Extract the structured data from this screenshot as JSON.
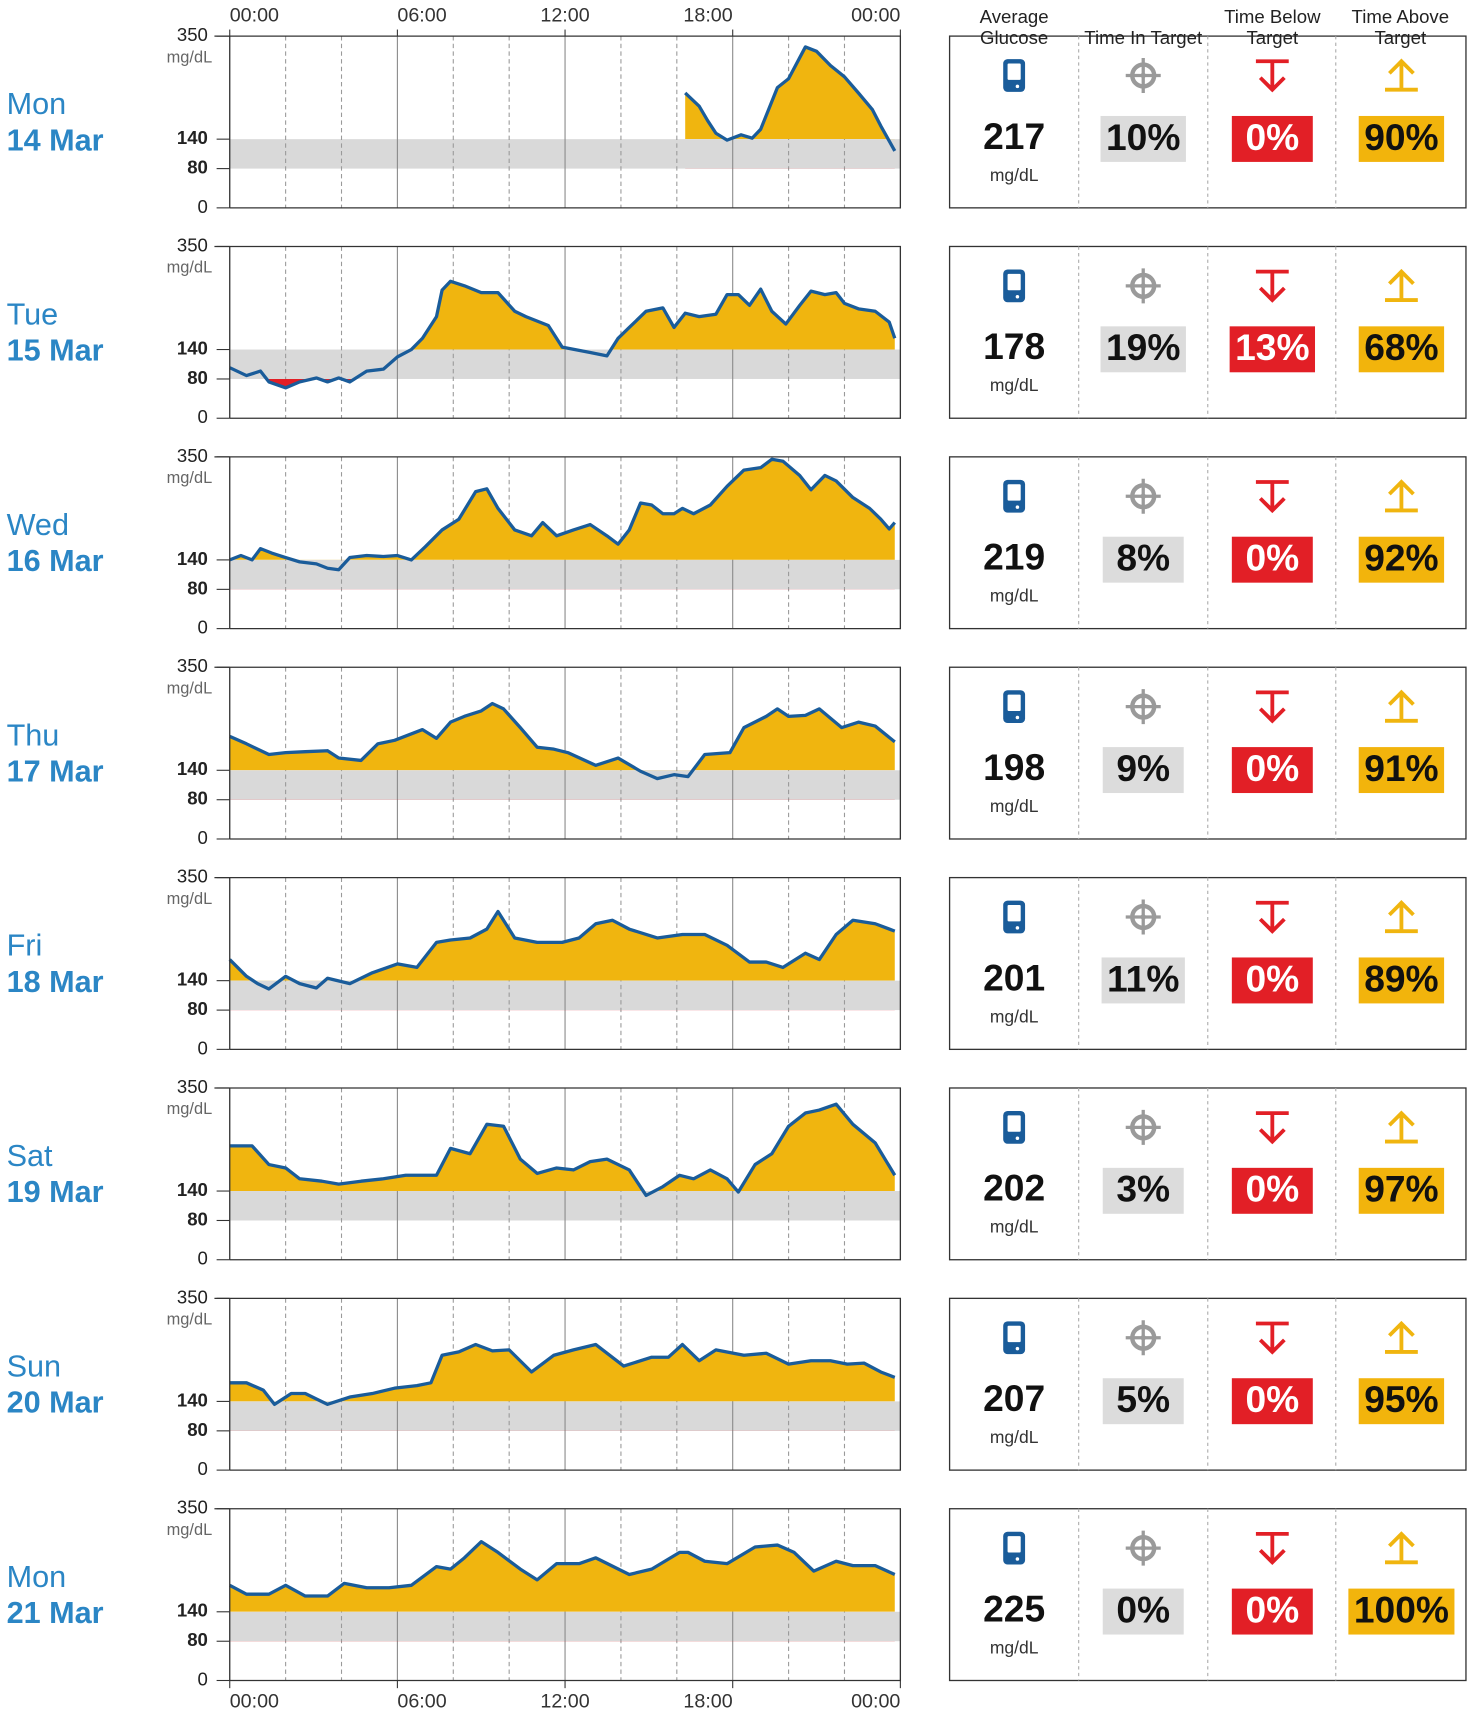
{
  "stats_headers": [
    "Average Glucose",
    "Time In Target",
    "Time Below Target",
    "Time Above Target"
  ],
  "stats_box_colors": [
    "#dcdcdc",
    "#e21f26",
    "#f2b40c"
  ],
  "chart_data": [
    {
      "type": "area",
      "day": "Mon",
      "date": "14 Mar",
      "x": [
        16.3,
        16.8,
        17.1,
        17.4,
        17.8,
        18.3,
        18.7,
        19.0,
        19.6,
        20.0,
        20.6,
        21.0,
        21.5,
        22.0,
        22.5,
        23.0,
        23.3,
        23.8
      ],
      "values": [
        234,
        207,
        178,
        152,
        138,
        149,
        142,
        160,
        245,
        263,
        328,
        319,
        290,
        267,
        234,
        200,
        167,
        116
      ],
      "xlim": [
        0,
        24
      ],
      "xticks": [
        {
          "value": 0,
          "label": "00:00"
        },
        {
          "value": 6,
          "label": "06:00"
        },
        {
          "value": 12,
          "label": "12:00"
        },
        {
          "value": 18,
          "label": "18:00"
        },
        {
          "value": 24,
          "label": "00:00"
        }
      ],
      "xgrid": [
        2,
        4,
        8,
        10,
        14,
        16,
        20,
        22
      ],
      "ylim": [
        0,
        350
      ],
      "yticks": [
        0,
        80,
        140,
        350
      ],
      "y_unit": "mg/dL",
      "target_range": [
        80,
        140
      ],
      "color": "#1a5c9a",
      "above_color": "#f0b50f",
      "below_color": "#e21f26",
      "target_color": "#d9d9d9",
      "stats": {
        "values": [
          217,
          10,
          0,
          90
        ],
        "value_labels": [
          "217",
          "10%",
          "0%",
          "90%"
        ],
        "unit": "mg/dL"
      }
    },
    {
      "type": "area",
      "day": "Tue",
      "date": "15 Mar",
      "x": [
        0,
        0.6,
        1.1,
        1.4,
        2.0,
        2.5,
        3.1,
        3.5,
        3.9,
        4.3,
        4.9,
        5.5,
        6.0,
        6.5,
        6.9,
        7.4,
        7.6,
        7.9,
        8.4,
        9.0,
        9.6,
        10.2,
        10.6,
        11.4,
        11.9,
        12.9,
        13.5,
        13.9,
        14.3,
        14.9,
        15.5,
        15.9,
        16.3,
        16.8,
        17.4,
        17.8,
        18.2,
        18.6,
        19.0,
        19.4,
        19.9,
        20.4,
        20.8,
        21.3,
        21.7,
        22.0,
        22.5,
        23.1,
        23.6,
        23.8
      ],
      "values": [
        103,
        87,
        96,
        74,
        62,
        74,
        82,
        74,
        82,
        74,
        96,
        100,
        125,
        140,
        163,
        207,
        261,
        279,
        270,
        256,
        256,
        218,
        207,
        189,
        145,
        134,
        127,
        163,
        185,
        218,
        225,
        185,
        214,
        207,
        212,
        252,
        252,
        230,
        263,
        218,
        192,
        230,
        259,
        252,
        256,
        234,
        223,
        218,
        196,
        163
      ],
      "xlim": [
        0,
        24
      ],
      "xticks": [
        {
          "value": 0,
          "label": "00:00"
        },
        {
          "value": 6,
          "label": "06:00"
        },
        {
          "value": 12,
          "label": "12:00"
        },
        {
          "value": 18,
          "label": "18:00"
        },
        {
          "value": 24,
          "label": "00:00"
        }
      ],
      "xgrid": [
        2,
        4,
        8,
        10,
        14,
        16,
        20,
        22
      ],
      "ylim": [
        0,
        350
      ],
      "yticks": [
        0,
        80,
        140,
        350
      ],
      "y_unit": "mg/dL",
      "target_range": [
        80,
        140
      ],
      "color": "#1a5c9a",
      "above_color": "#f0b50f",
      "below_color": "#e21f26",
      "target_color": "#d9d9d9",
      "stats": {
        "values": [
          178,
          19,
          13,
          68
        ],
        "value_labels": [
          "178",
          "19%",
          "13%",
          "68%"
        ],
        "unit": "mg/dL"
      }
    },
    {
      "type": "area",
      "day": "Wed",
      "date": "16 Mar",
      "x": [
        0,
        0.4,
        0.8,
        1.1,
        1.5,
        2.0,
        2.5,
        3.1,
        3.5,
        3.9,
        4.3,
        4.9,
        5.5,
        6.0,
        6.5,
        7.0,
        7.6,
        8.2,
        8.8,
        9.2,
        9.6,
        10.2,
        10.8,
        11.2,
        11.7,
        12.3,
        12.9,
        13.5,
        13.9,
        14.3,
        14.7,
        15.1,
        15.5,
        15.9,
        16.2,
        16.6,
        17.2,
        17.8,
        18.4,
        19.0,
        19.4,
        19.8,
        20.4,
        20.8,
        21.3,
        21.7,
        22.3,
        22.9,
        23.3,
        23.6,
        23.8
      ],
      "values": [
        140,
        149,
        140,
        163,
        154,
        145,
        136,
        132,
        123,
        120,
        145,
        149,
        147,
        149,
        140,
        167,
        201,
        223,
        279,
        285,
        245,
        201,
        189,
        216,
        189,
        201,
        212,
        189,
        172,
        201,
        256,
        252,
        234,
        234,
        245,
        234,
        252,
        290,
        323,
        328,
        345,
        341,
        312,
        283,
        312,
        301,
        267,
        245,
        223,
        203,
        216
      ],
      "xlim": [
        0,
        24
      ],
      "xticks": [
        {
          "value": 0,
          "label": "00:00"
        },
        {
          "value": 6,
          "label": "06:00"
        },
        {
          "value": 12,
          "label": "12:00"
        },
        {
          "value": 18,
          "label": "18:00"
        },
        {
          "value": 24,
          "label": "00:00"
        }
      ],
      "xgrid": [
        2,
        4,
        8,
        10,
        14,
        16,
        20,
        22
      ],
      "ylim": [
        0,
        350
      ],
      "yticks": [
        0,
        80,
        140,
        350
      ],
      "y_unit": "mg/dL",
      "target_range": [
        80,
        140
      ],
      "color": "#1a5c9a",
      "above_color": "#f0b50f",
      "below_color": "#e21f26",
      "target_color": "#d9d9d9",
      "stats": {
        "values": [
          219,
          8,
          0,
          92
        ],
        "value_labels": [
          "219",
          "8%",
          "0%",
          "92%"
        ],
        "unit": "mg/dL"
      }
    },
    {
      "type": "area",
      "day": "Thu",
      "date": "17 Mar",
      "x": [
        0,
        0.6,
        1.4,
        2.0,
        2.7,
        3.5,
        3.9,
        4.7,
        5.3,
        5.9,
        6.9,
        7.4,
        7.9,
        8.4,
        9.0,
        9.4,
        9.8,
        10.4,
        11.0,
        11.6,
        12.1,
        13.1,
        13.9,
        14.7,
        15.3,
        15.9,
        16.4,
        17.0,
        17.9,
        18.4,
        19.2,
        19.6,
        20.0,
        20.6,
        21.1,
        21.9,
        22.5,
        23.1,
        23.8
      ],
      "values": [
        209,
        194,
        172,
        176,
        178,
        180,
        165,
        160,
        194,
        201,
        223,
        205,
        238,
        250,
        261,
        276,
        265,
        227,
        187,
        183,
        176,
        150,
        165,
        138,
        123,
        131,
        127,
        172,
        176,
        227,
        250,
        265,
        250,
        252,
        265,
        227,
        238,
        230,
        198
      ],
      "xlim": [
        0,
        24
      ],
      "xticks": [
        {
          "value": 0,
          "label": "00:00"
        },
        {
          "value": 6,
          "label": "06:00"
        },
        {
          "value": 12,
          "label": "12:00"
        },
        {
          "value": 18,
          "label": "18:00"
        },
        {
          "value": 24,
          "label": "00:00"
        }
      ],
      "xgrid": [
        2,
        4,
        8,
        10,
        14,
        16,
        20,
        22
      ],
      "ylim": [
        0,
        350
      ],
      "yticks": [
        0,
        80,
        140,
        350
      ],
      "y_unit": "mg/dL",
      "target_range": [
        80,
        140
      ],
      "color": "#1a5c9a",
      "above_color": "#f0b50f",
      "below_color": "#e21f26",
      "target_color": "#d9d9d9",
      "stats": {
        "values": [
          198,
          9,
          0,
          91
        ],
        "value_labels": [
          "198",
          "9%",
          "0%",
          "91%"
        ],
        "unit": "mg/dL"
      }
    },
    {
      "type": "area",
      "day": "Fri",
      "date": "18 Mar",
      "x": [
        0,
        0.6,
        1.0,
        1.4,
        2.0,
        2.5,
        3.1,
        3.5,
        4.3,
        5.1,
        6.0,
        6.7,
        7.4,
        7.9,
        8.6,
        9.2,
        9.6,
        10.2,
        11.0,
        11.9,
        12.5,
        13.1,
        13.7,
        14.3,
        15.3,
        16.2,
        17.0,
        17.8,
        18.6,
        19.2,
        19.8,
        20.6,
        21.1,
        21.7,
        22.3,
        23.1,
        23.8
      ],
      "values": [
        183,
        149,
        134,
        123,
        149,
        134,
        125,
        145,
        134,
        156,
        174,
        167,
        218,
        223,
        227,
        245,
        281,
        227,
        218,
        218,
        227,
        256,
        263,
        245,
        227,
        234,
        234,
        212,
        178,
        178,
        167,
        196,
        183,
        234,
        263,
        256,
        241
      ],
      "xlim": [
        0,
        24
      ],
      "xticks": [
        {
          "value": 0,
          "label": "00:00"
        },
        {
          "value": 6,
          "label": "06:00"
        },
        {
          "value": 12,
          "label": "12:00"
        },
        {
          "value": 18,
          "label": "18:00"
        },
        {
          "value": 24,
          "label": "00:00"
        }
      ],
      "xgrid": [
        2,
        4,
        8,
        10,
        14,
        16,
        20,
        22
      ],
      "ylim": [
        0,
        350
      ],
      "yticks": [
        0,
        80,
        140,
        350
      ],
      "y_unit": "mg/dL",
      "target_range": [
        80,
        140
      ],
      "color": "#1a5c9a",
      "above_color": "#f0b50f",
      "below_color": "#e21f26",
      "target_color": "#d9d9d9",
      "stats": {
        "values": [
          201,
          11,
          0,
          89
        ],
        "value_labels": [
          "201",
          "11%",
          "0%",
          "89%"
        ],
        "unit": "mg/dL"
      }
    },
    {
      "type": "area",
      "day": "Sat",
      "date": "19 Mar",
      "x": [
        0,
        0.8,
        1.4,
        2.0,
        2.5,
        3.3,
        3.9,
        4.7,
        5.5,
        6.3,
        7.0,
        7.4,
        7.9,
        8.6,
        9.2,
        9.8,
        10.4,
        11.0,
        11.7,
        12.3,
        12.9,
        13.5,
        14.3,
        14.9,
        15.5,
        16.1,
        16.6,
        17.2,
        17.8,
        18.2,
        18.8,
        19.4,
        20.0,
        20.6,
        21.1,
        21.7,
        22.3,
        23.1,
        23.8
      ],
      "values": [
        232,
        232,
        194,
        187,
        165,
        160,
        154,
        160,
        165,
        172,
        172,
        172,
        227,
        216,
        276,
        272,
        205,
        176,
        187,
        183,
        200,
        205,
        183,
        131,
        149,
        172,
        165,
        183,
        165,
        138,
        194,
        216,
        272,
        299,
        305,
        317,
        276,
        238,
        172
      ],
      "xlim": [
        0,
        24
      ],
      "xticks": [
        {
          "value": 0,
          "label": "00:00"
        },
        {
          "value": 6,
          "label": "06:00"
        },
        {
          "value": 12,
          "label": "12:00"
        },
        {
          "value": 18,
          "label": "18:00"
        },
        {
          "value": 24,
          "label": "00:00"
        }
      ],
      "xgrid": [
        2,
        4,
        8,
        10,
        14,
        16,
        20,
        22
      ],
      "ylim": [
        0,
        350
      ],
      "yticks": [
        0,
        80,
        140,
        350
      ],
      "y_unit": "mg/dL",
      "target_range": [
        80,
        140
      ],
      "color": "#1a5c9a",
      "above_color": "#f0b50f",
      "below_color": "#e21f26",
      "target_color": "#d9d9d9",
      "stats": {
        "values": [
          202,
          3,
          0,
          97
        ],
        "value_labels": [
          "202",
          "3%",
          "0%",
          "97%"
        ],
        "unit": "mg/dL"
      }
    },
    {
      "type": "area",
      "day": "Sun",
      "date": "20 Mar",
      "x": [
        0,
        0.6,
        1.2,
        1.6,
        2.2,
        2.7,
        3.5,
        4.3,
        5.1,
        5.9,
        6.7,
        7.2,
        7.6,
        8.2,
        8.8,
        9.4,
        10.0,
        10.8,
        11.6,
        12.3,
        13.1,
        14.1,
        15.1,
        15.7,
        16.2,
        16.8,
        17.4,
        18.4,
        19.2,
        20.0,
        20.8,
        21.5,
        22.1,
        22.7,
        23.3,
        23.8
      ],
      "values": [
        178,
        178,
        163,
        134,
        156,
        156,
        134,
        149,
        156,
        167,
        172,
        178,
        234,
        241,
        256,
        243,
        245,
        200,
        234,
        245,
        256,
        212,
        230,
        230,
        256,
        223,
        245,
        234,
        238,
        216,
        223,
        223,
        216,
        218,
        200,
        189
      ],
      "xlim": [
        0,
        24
      ],
      "xticks": [
        {
          "value": 0,
          "label": "00:00"
        },
        {
          "value": 6,
          "label": "06:00"
        },
        {
          "value": 12,
          "label": "12:00"
        },
        {
          "value": 18,
          "label": "18:00"
        },
        {
          "value": 24,
          "label": "00:00"
        }
      ],
      "xgrid": [
        2,
        4,
        8,
        10,
        14,
        16,
        20,
        22
      ],
      "ylim": [
        0,
        350
      ],
      "yticks": [
        0,
        80,
        140,
        350
      ],
      "y_unit": "mg/dL",
      "target_range": [
        80,
        140
      ],
      "color": "#1a5c9a",
      "above_color": "#f0b50f",
      "below_color": "#e21f26",
      "target_color": "#d9d9d9",
      "stats": {
        "values": [
          207,
          5,
          0,
          95
        ],
        "value_labels": [
          "207",
          "5%",
          "0%",
          "95%"
        ],
        "unit": "mg/dL"
      }
    },
    {
      "type": "area",
      "day": "Mon",
      "date": "21 Mar",
      "x": [
        0,
        0.6,
        1.4,
        2.0,
        2.7,
        3.5,
        4.1,
        4.9,
        5.7,
        6.5,
        7.4,
        7.9,
        8.4,
        9.0,
        9.6,
        10.4,
        11.0,
        11.7,
        12.5,
        13.1,
        14.3,
        15.1,
        16.1,
        16.4,
        17.0,
        17.8,
        18.8,
        19.6,
        20.2,
        20.9,
        21.7,
        22.3,
        23.1,
        23.8
      ],
      "values": [
        194,
        176,
        176,
        194,
        172,
        172,
        198,
        189,
        189,
        194,
        232,
        227,
        250,
        283,
        261,
        227,
        205,
        238,
        238,
        250,
        216,
        227,
        261,
        261,
        243,
        238,
        272,
        276,
        261,
        223,
        243,
        234,
        234,
        216
      ],
      "xlim": [
        0,
        24
      ],
      "xticks": [
        {
          "value": 0,
          "label": "00:00"
        },
        {
          "value": 6,
          "label": "06:00"
        },
        {
          "value": 12,
          "label": "12:00"
        },
        {
          "value": 18,
          "label": "18:00"
        },
        {
          "value": 24,
          "label": "00:00"
        }
      ],
      "xgrid": [
        2,
        4,
        8,
        10,
        14,
        16,
        20,
        22
      ],
      "ylim": [
        0,
        350
      ],
      "yticks": [
        0,
        80,
        140,
        350
      ],
      "y_unit": "mg/dL",
      "target_range": [
        80,
        140
      ],
      "color": "#1a5c9a",
      "above_color": "#f0b50f",
      "below_color": "#e21f26",
      "target_color": "#d9d9d9",
      "stats": {
        "values": [
          225,
          0,
          0,
          100
        ],
        "value_labels": [
          "225",
          "0%",
          "0%",
          "100%"
        ],
        "unit": "mg/dL"
      }
    }
  ]
}
